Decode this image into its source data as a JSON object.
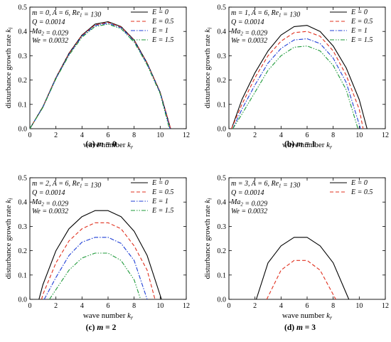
{
  "panels": [
    {
      "caption_letter": "(a)",
      "caption_rest": " m = 0",
      "params": [
        "m = 0, A = 6, Re1 = 130",
        "Q = 0.0014",
        "Ma2 = 0.029",
        "We = 0.0032"
      ]
    },
    {
      "caption_letter": "(b)",
      "caption_rest": " m = 1",
      "params": [
        "m = 1, A = 6, Re1 = 130",
        "Q = 0.0014",
        "Ma2 = 0.029",
        "We = 0.0032"
      ]
    },
    {
      "caption_letter": "(c)",
      "caption_rest": " m = 2",
      "params": [
        "m = 2, A = 6, Re1 = 130",
        "Q = 0.0014",
        "Ma2 = 0.029",
        "We = 0.0032"
      ]
    },
    {
      "caption_letter": "(d)",
      "caption_rest": " m = 3",
      "params": [
        "m = 3, A = 6, Re1 = 130",
        "Q = 0.0014",
        "Ma2 = 0.029",
        "We = 0.0032"
      ]
    }
  ],
  "colors": {
    "E = 0": "#000000",
    "E = 0.5": "#e0301e",
    "E = 1": "#1f3fd6",
    "E = 1.5": "#1e9a3a"
  },
  "chart_data": [
    {
      "type": "line",
      "xlabel": "wave number kr",
      "ylabel": "disturbance growth rate ki",
      "xlim": [
        0,
        12
      ],
      "ylim": [
        0,
        0.5
      ],
      "xticks": [
        "0",
        "2",
        "4",
        "6",
        "8",
        "10",
        "12"
      ],
      "yticks": [
        "0.0",
        "0.1",
        "0.2",
        "0.3",
        "0.4",
        "0.5"
      ],
      "legend_position": "top-right",
      "series": [
        {
          "name": "E = 0",
          "style": "solid",
          "x": [
            0,
            1,
            2,
            3,
            4,
            5,
            6,
            7,
            8,
            9,
            10,
            10.8
          ],
          "y": [
            0,
            0.09,
            0.21,
            0.31,
            0.385,
            0.43,
            0.44,
            0.42,
            0.365,
            0.27,
            0.15,
            0
          ]
        },
        {
          "name": "E = 0.5",
          "style": "dashed",
          "x": [
            0,
            1,
            2,
            3,
            4,
            5,
            6,
            7,
            8,
            9,
            10,
            10.8
          ],
          "y": [
            0,
            0.089,
            0.209,
            0.308,
            0.383,
            0.427,
            0.437,
            0.418,
            0.363,
            0.268,
            0.149,
            0
          ]
        },
        {
          "name": "E = 1",
          "style": "dashdot",
          "x": [
            0,
            1,
            2,
            3,
            4,
            5,
            6,
            7,
            8,
            9,
            10,
            10.75
          ],
          "y": [
            0,
            0.088,
            0.207,
            0.305,
            0.38,
            0.424,
            0.434,
            0.415,
            0.36,
            0.266,
            0.147,
            0
          ]
        },
        {
          "name": "E = 1.5",
          "style": "dashdotdot",
          "x": [
            0,
            1,
            2,
            3,
            4,
            5,
            6,
            7,
            8,
            9,
            10,
            10.7
          ],
          "y": [
            0,
            0.087,
            0.205,
            0.302,
            0.376,
            0.42,
            0.43,
            0.411,
            0.356,
            0.262,
            0.144,
            0
          ]
        }
      ]
    },
    {
      "type": "line",
      "xlabel": "wave number kr",
      "ylabel": "disturbance growth rate ki",
      "xlim": [
        0,
        12
      ],
      "ylim": [
        0,
        0.5
      ],
      "xticks": [
        "0",
        "2",
        "4",
        "6",
        "8",
        "10",
        "12"
      ],
      "yticks": [
        "0.0",
        "0.1",
        "0.2",
        "0.3",
        "0.4",
        "0.5"
      ],
      "legend_position": "top-right",
      "series": [
        {
          "name": "E = 0",
          "style": "solid",
          "x": [
            0.2,
            1,
            2,
            3,
            4,
            5,
            6,
            7,
            8,
            9,
            10,
            10.6
          ],
          "y": [
            0,
            0.12,
            0.23,
            0.32,
            0.385,
            0.42,
            0.425,
            0.4,
            0.34,
            0.25,
            0.12,
            0
          ]
        },
        {
          "name": "E = 0.5",
          "style": "dashed",
          "x": [
            0.2,
            1,
            2,
            3,
            4,
            5,
            6,
            7,
            8,
            9,
            10,
            10.3
          ],
          "y": [
            0,
            0.1,
            0.21,
            0.3,
            0.36,
            0.395,
            0.4,
            0.38,
            0.32,
            0.22,
            0.08,
            0
          ]
        },
        {
          "name": "E = 1",
          "style": "dashdot",
          "x": [
            0.3,
            1,
            2,
            3,
            4,
            5,
            6,
            7,
            8,
            9,
            10.1
          ],
          "y": [
            0,
            0.08,
            0.18,
            0.27,
            0.33,
            0.365,
            0.37,
            0.35,
            0.29,
            0.19,
            0
          ]
        },
        {
          "name": "E = 1.5",
          "style": "dashdotdot",
          "x": [
            0.3,
            1,
            2,
            3,
            4,
            5,
            6,
            7,
            8,
            9,
            9.9
          ],
          "y": [
            0,
            0.06,
            0.15,
            0.24,
            0.3,
            0.335,
            0.34,
            0.32,
            0.26,
            0.16,
            0
          ]
        }
      ]
    },
    {
      "type": "line",
      "xlabel": "wave number kr",
      "ylabel": "disturbance growth rate ki",
      "xlim": [
        0,
        12
      ],
      "ylim": [
        0,
        0.5
      ],
      "xticks": [
        "0",
        "2",
        "4",
        "6",
        "8",
        "10",
        "12"
      ],
      "yticks": [
        "0.0",
        "0.1",
        "0.2",
        "0.3",
        "0.4",
        "0.5"
      ],
      "legend_position": "top-right",
      "series": [
        {
          "name": "E = 0",
          "style": "solid",
          "x": [
            0.7,
            1,
            2,
            3,
            4,
            5,
            6,
            7,
            8,
            9,
            10.1
          ],
          "y": [
            0,
            0.06,
            0.2,
            0.29,
            0.34,
            0.365,
            0.365,
            0.34,
            0.28,
            0.18,
            0
          ]
        },
        {
          "name": "E = 0.5",
          "style": "dashed",
          "x": [
            0.9,
            1,
            2,
            3,
            4,
            5,
            6,
            7,
            8,
            9,
            9.6
          ],
          "y": [
            0,
            0.02,
            0.15,
            0.24,
            0.29,
            0.315,
            0.315,
            0.29,
            0.22,
            0.12,
            0
          ]
        },
        {
          "name": "E = 1",
          "style": "dashdot",
          "x": [
            1.1,
            2,
            3,
            4,
            5,
            6,
            7,
            8,
            9.0
          ],
          "y": [
            0,
            0.09,
            0.18,
            0.235,
            0.255,
            0.255,
            0.23,
            0.16,
            0
          ]
        },
        {
          "name": "E = 1.5",
          "style": "dashdotdot",
          "x": [
            1.5,
            2,
            3,
            4,
            5,
            6,
            7,
            8,
            8.5
          ],
          "y": [
            0,
            0.04,
            0.12,
            0.17,
            0.19,
            0.19,
            0.16,
            0.08,
            0
          ]
        }
      ]
    },
    {
      "type": "line",
      "xlabel": "wave number kr",
      "ylabel": "disturbance growth rate ki",
      "xlim": [
        0,
        12
      ],
      "ylim": [
        0,
        0.5
      ],
      "xticks": [
        "0",
        "2",
        "4",
        "6",
        "8",
        "10",
        "12"
      ],
      "yticks": [
        "0.0",
        "0.1",
        "0.2",
        "0.3",
        "0.4",
        "0.5"
      ],
      "legend_position": "top-right",
      "series": [
        {
          "name": "E = 0",
          "style": "solid",
          "x": [
            2.1,
            3,
            4,
            5,
            6,
            7,
            8,
            9.2
          ],
          "y": [
            0,
            0.15,
            0.22,
            0.255,
            0.255,
            0.22,
            0.15,
            0
          ]
        },
        {
          "name": "E = 0.5",
          "style": "dashed",
          "x": [
            2.9,
            4,
            5,
            6,
            7,
            8.2
          ],
          "y": [
            0,
            0.12,
            0.16,
            0.16,
            0.12,
            0
          ]
        }
      ]
    }
  ]
}
